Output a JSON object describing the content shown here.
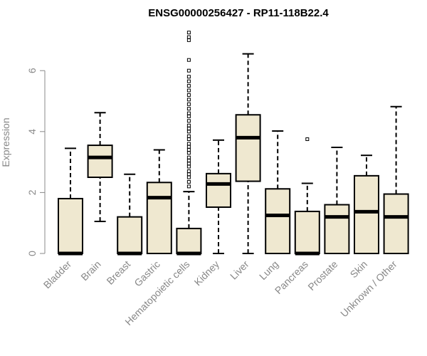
{
  "chart_data": {
    "type": "box",
    "title": "ENSG00000256427 - RP11-118B22.4",
    "xlabel": "",
    "ylabel": "Expression",
    "ylim": [
      0,
      7.3
    ],
    "yticks": [
      0,
      2,
      4,
      6
    ],
    "box_fill": "#efe8d0",
    "categories": [
      "Bladder",
      "Brain",
      "Breast",
      "Gastric",
      "Hematopoietic cells",
      "Kidney",
      "Liver",
      "Lung",
      "Pancreas",
      "Prostate",
      "Skin",
      "Unknown / Other"
    ],
    "boxes": [
      {
        "min": 0,
        "q1": 0,
        "median": 0,
        "q3": 1.8,
        "max": 3.45,
        "outliers": []
      },
      {
        "min": 1.05,
        "q1": 2.5,
        "median": 3.15,
        "q3": 3.55,
        "max": 4.62,
        "outliers": []
      },
      {
        "min": 0,
        "q1": 0,
        "median": 0,
        "q3": 1.2,
        "max": 2.6,
        "outliers": []
      },
      {
        "min": 0,
        "q1": 0,
        "median": 1.83,
        "q3": 2.33,
        "max": 3.4,
        "outliers": []
      },
      {
        "min": 0,
        "q1": 0,
        "median": 0,
        "q3": 0.82,
        "max": 2.03,
        "outliers": [
          2.2,
          2.35,
          2.5,
          2.6,
          2.7,
          2.85,
          2.95,
          3.05,
          3.15,
          3.3,
          3.4,
          3.5,
          3.6,
          3.75,
          3.85,
          4.0,
          4.1,
          4.2,
          4.35,
          4.5,
          4.6,
          4.75,
          4.9,
          5.05,
          5.2,
          5.35,
          5.5,
          5.65,
          5.8,
          6.0,
          6.35,
          7.0,
          7.1,
          7.25
        ]
      },
      {
        "min": 0,
        "q1": 1.52,
        "median": 2.28,
        "q3": 2.62,
        "max": 3.72,
        "outliers": []
      },
      {
        "min": 0,
        "q1": 2.37,
        "median": 3.8,
        "q3": 4.55,
        "max": 6.55,
        "outliers": []
      },
      {
        "min": 0,
        "q1": 0,
        "median": 1.25,
        "q3": 2.12,
        "max": 4.02,
        "outliers": []
      },
      {
        "min": 0,
        "q1": 0,
        "median": 0,
        "q3": 1.38,
        "max": 2.3,
        "outliers": [
          3.75
        ]
      },
      {
        "min": 0,
        "q1": 0,
        "median": 1.2,
        "q3": 1.6,
        "max": 3.48,
        "outliers": []
      },
      {
        "min": 0,
        "q1": 0,
        "median": 1.37,
        "q3": 2.55,
        "max": 3.22,
        "outliers": []
      },
      {
        "min": 0,
        "q1": 0,
        "median": 1.2,
        "q3": 1.95,
        "max": 4.82,
        "outliers": []
      }
    ]
  }
}
